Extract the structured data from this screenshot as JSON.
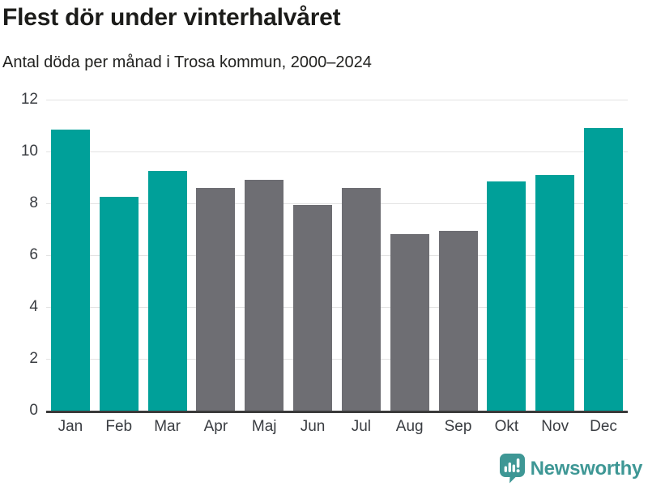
{
  "header": {
    "title": "Flest dör under vinterhalvåret",
    "subtitle": "Antal döda per månad i Trosa kommun, 2000–2024"
  },
  "chart_data": {
    "type": "bar",
    "title": "Flest dör under vinterhalvåret",
    "subtitle": "Antal döda per månad i Trosa kommun, 2000–2024",
    "categories": [
      "Jan",
      "Feb",
      "Mar",
      "Apr",
      "Maj",
      "Jun",
      "Jul",
      "Aug",
      "Sep",
      "Okt",
      "Nov",
      "Dec"
    ],
    "values": [
      10.85,
      8.25,
      9.25,
      8.6,
      8.9,
      7.95,
      8.6,
      6.8,
      6.95,
      8.85,
      9.1,
      10.9
    ],
    "highlighted_months": [
      true,
      true,
      true,
      false,
      false,
      false,
      false,
      false,
      false,
      true,
      true,
      true
    ],
    "xlabel": "",
    "ylabel": "",
    "ylim": [
      0,
      12
    ],
    "yticks": [
      0,
      2,
      4,
      6,
      8,
      10,
      12
    ],
    "grid": true,
    "legend_position": "none",
    "colors": {
      "highlight_bar": "#00A099",
      "default_bar": "#6E6E73",
      "gridline": "#E3E3E3",
      "axis_line": "#3B3B3B",
      "tick_text": "#3A3D42"
    }
  },
  "footer": {
    "brand": "Newsworthy",
    "brand_color": "#3E9795",
    "logo_icon": "bar-chart-speech-bubble-icon"
  }
}
